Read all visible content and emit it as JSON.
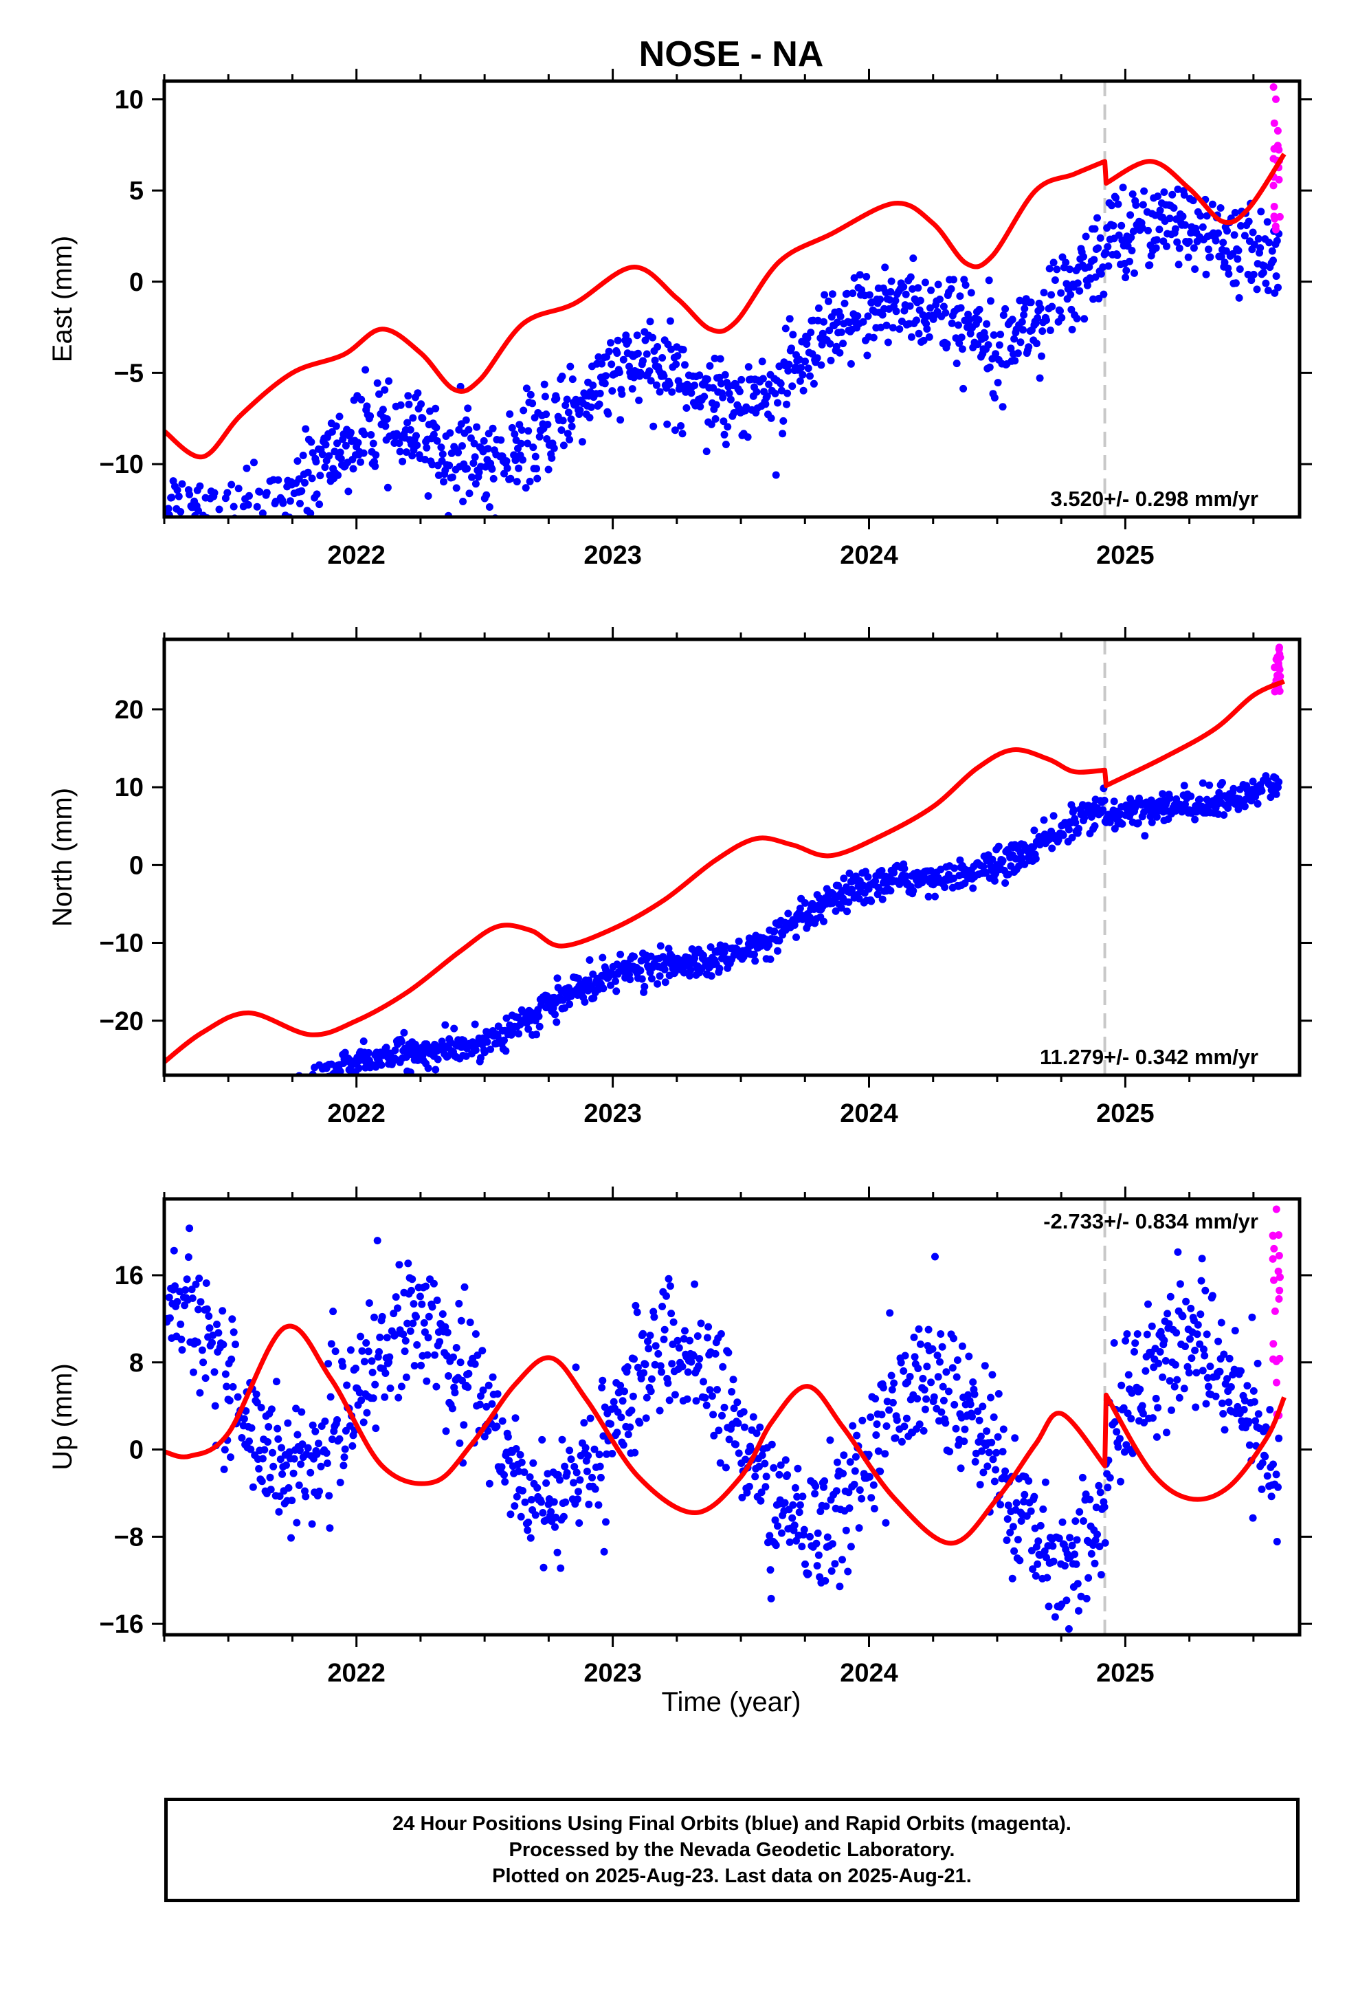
{
  "title": "NOSE - NA",
  "xlabel": "Time (year)",
  "footer": {
    "line1": "24 Hour Positions Using Final Orbits (blue) and Rapid Orbits (magenta).",
    "line2": "Processed by the Nevada Geodetic Laboratory.",
    "line3": "Plotted on 2025-Aug-23. Last data on 2025-Aug-21."
  },
  "colors": {
    "final": "#0000ff",
    "rapid": "#ff00ff",
    "model": "#ff0000",
    "offset_line": "#c8c8c8"
  },
  "chart_data": [
    {
      "type": "scatter",
      "component": "east",
      "ylabel": "East (mm)",
      "rate_label": "3.520+/- 0.298 mm/yr",
      "xlim": [
        2021.25,
        2025.68
      ],
      "ylim": [
        -12.9,
        11.0
      ],
      "xticks": [
        2022,
        2023,
        2024,
        2025
      ],
      "xtick_labels": [
        "2022",
        "2023",
        "2024",
        "2025"
      ],
      "yticks": [
        -10,
        -5,
        0,
        5,
        10
      ],
      "ytick_labels": [
        "−10",
        "−5",
        "0",
        "5",
        "10"
      ],
      "equipment_change": 2024.92,
      "trend": {
        "rate": 3.52,
        "intercept": -5.2,
        "annual": 1.6,
        "phase": 1.2,
        "jump": 1.0,
        "scatter": 1.2
      },
      "rapid_range": [
        2.4,
        10.9
      ],
      "model_line": [
        [
          2021.25,
          -8.2
        ],
        [
          2021.4,
          -9.6
        ],
        [
          2021.55,
          -7.3
        ],
        [
          2021.75,
          -5.0
        ],
        [
          2021.95,
          -4.0
        ],
        [
          2022.1,
          -2.6
        ],
        [
          2022.25,
          -3.9
        ],
        [
          2022.38,
          -5.9
        ],
        [
          2022.48,
          -5.4
        ],
        [
          2022.65,
          -2.3
        ],
        [
          2022.85,
          -1.2
        ],
        [
          2023.08,
          0.8
        ],
        [
          2023.25,
          -0.9
        ],
        [
          2023.38,
          -2.6
        ],
        [
          2023.48,
          -2.2
        ],
        [
          2023.65,
          1.1
        ],
        [
          2023.85,
          2.6
        ],
        [
          2024.1,
          4.3
        ],
        [
          2024.25,
          3.2
        ],
        [
          2024.38,
          1.0
        ],
        [
          2024.48,
          1.4
        ],
        [
          2024.65,
          5.0
        ],
        [
          2024.8,
          5.9
        ],
        [
          2024.92,
          6.6
        ],
        [
          2024.925,
          5.4
        ],
        [
          2025.1,
          6.6
        ],
        [
          2025.25,
          5.1
        ],
        [
          2025.38,
          3.3
        ],
        [
          2025.48,
          4.0
        ],
        [
          2025.62,
          7.0
        ]
      ]
    },
    {
      "type": "scatter",
      "component": "north",
      "ylabel": "North (mm)",
      "rate_label": "11.279+/- 0.342 mm/yr",
      "xlim": [
        2021.25,
        2025.68
      ],
      "ylim": [
        -27.0,
        29.0
      ],
      "xticks": [
        2022,
        2023,
        2024,
        2025
      ],
      "xtick_labels": [
        "2022",
        "2023",
        "2024",
        "2025"
      ],
      "yticks": [
        -20,
        -10,
        0,
        10,
        20
      ],
      "ytick_labels": [
        "−20",
        "−10",
        "0",
        "10",
        "20"
      ],
      "equipment_change": 2024.92,
      "trend": {
        "rate": 11.279,
        "intercept": -11.0,
        "annual": 1.5,
        "phase": 1.7,
        "jump": -2.0,
        "scatter": 1.0
      },
      "rapid_range": [
        22.0,
        28.0
      ],
      "model_line": [
        [
          2021.25,
          -25.3
        ],
        [
          2021.4,
          -21.5
        ],
        [
          2021.58,
          -19.0
        ],
        [
          2021.82,
          -21.8
        ],
        [
          2022.0,
          -20.0
        ],
        [
          2022.2,
          -16.3
        ],
        [
          2022.4,
          -11.2
        ],
        [
          2022.55,
          -7.9
        ],
        [
          2022.68,
          -8.4
        ],
        [
          2022.8,
          -10.4
        ],
        [
          2023.0,
          -8.2
        ],
        [
          2023.2,
          -4.5
        ],
        [
          2023.4,
          0.6
        ],
        [
          2023.56,
          3.4
        ],
        [
          2023.7,
          2.6
        ],
        [
          2023.85,
          1.2
        ],
        [
          2024.05,
          3.8
        ],
        [
          2024.25,
          7.5
        ],
        [
          2024.42,
          12.4
        ],
        [
          2024.56,
          14.8
        ],
        [
          2024.7,
          13.6
        ],
        [
          2024.8,
          12.0
        ],
        [
          2024.92,
          12.2
        ],
        [
          2024.925,
          10.2
        ],
        [
          2025.15,
          13.8
        ],
        [
          2025.35,
          17.5
        ],
        [
          2025.5,
          21.8
        ],
        [
          2025.62,
          23.6
        ]
      ]
    },
    {
      "type": "scatter",
      "component": "up",
      "ylabel": "Up (mm)",
      "rate_label": "-2.733+/- 0.834 mm/yr",
      "xlim": [
        2021.25,
        2025.68
      ],
      "ylim": [
        -17.0,
        23.0
      ],
      "xticks": [
        2022,
        2023,
        2024,
        2025
      ],
      "xtick_labels": [
        "2022",
        "2023",
        "2024",
        "2025"
      ],
      "yticks": [
        -16,
        -8,
        0,
        8,
        16
      ],
      "ytick_labels": [
        "−16",
        "−8",
        "0",
        "8",
        "16"
      ],
      "equipment_change": 2024.92,
      "trend": {
        "rate": -2.733,
        "intercept": 1.2,
        "annual": 7.5,
        "phase": 0.0,
        "jump": 6.5,
        "scatter": 3.0
      },
      "rapid_range": [
        0.5,
        22.5
      ],
      "model_line": [
        [
          2021.25,
          -0.2
        ],
        [
          2021.35,
          -0.6
        ],
        [
          2021.5,
          1.5
        ],
        [
          2021.72,
          11.2
        ],
        [
          2021.9,
          6.5
        ],
        [
          2022.1,
          -1.5
        ],
        [
          2022.3,
          -3.0
        ],
        [
          2022.45,
          0.5
        ],
        [
          2022.62,
          6.0
        ],
        [
          2022.76,
          8.4
        ],
        [
          2022.9,
          4.5
        ],
        [
          2023.1,
          -2.5
        ],
        [
          2023.32,
          -5.8
        ],
        [
          2023.5,
          -2.5
        ],
        [
          2023.62,
          2.5
        ],
        [
          2023.76,
          5.8
        ],
        [
          2023.9,
          2.0
        ],
        [
          2024.1,
          -4.5
        ],
        [
          2024.32,
          -8.6
        ],
        [
          2024.5,
          -4.5
        ],
        [
          2024.65,
          0.5
        ],
        [
          2024.75,
          3.3
        ],
        [
          2024.92,
          -1.5
        ],
        [
          2024.925,
          5.0
        ],
        [
          2025.1,
          -2.0
        ],
        [
          2025.25,
          -4.5
        ],
        [
          2025.4,
          -3.5
        ],
        [
          2025.55,
          1.0
        ],
        [
          2025.62,
          4.8
        ]
      ]
    }
  ]
}
